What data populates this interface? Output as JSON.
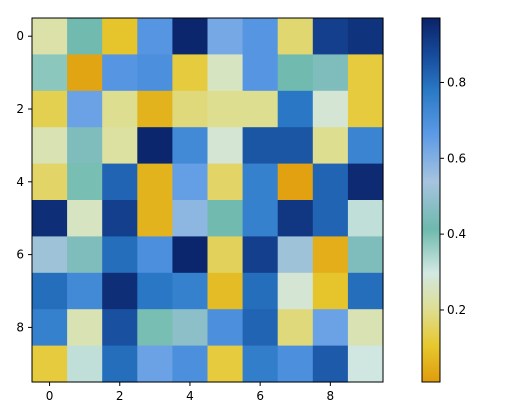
{
  "chart_data": {
    "type": "heatmap",
    "title": "",
    "xlabel": "",
    "ylabel": "",
    "rows": 10,
    "cols": 10,
    "x_ticks": [
      "0",
      "2",
      "4",
      "6",
      "8"
    ],
    "y_ticks": [
      "0",
      "2",
      "4",
      "6",
      "8"
    ],
    "values": [
      [
        0.23,
        0.42,
        0.1,
        0.68,
        0.96,
        0.62,
        0.68,
        0.17,
        0.9,
        0.93
      ],
      [
        0.38,
        0.03,
        0.68,
        0.7,
        0.12,
        0.26,
        0.68,
        0.42,
        0.45,
        0.12
      ],
      [
        0.14,
        0.64,
        0.2,
        0.06,
        0.18,
        0.2,
        0.2,
        0.78,
        0.28,
        0.12
      ],
      [
        0.24,
        0.45,
        0.22,
        0.96,
        0.72,
        0.28,
        0.85,
        0.85,
        0.2,
        0.74
      ],
      [
        0.16,
        0.4,
        0.82,
        0.06,
        0.65,
        0.16,
        0.75,
        0.02,
        0.82,
        0.95
      ],
      [
        0.94,
        0.26,
        0.9,
        0.06,
        0.58,
        0.42,
        0.75,
        0.92,
        0.82,
        0.32
      ],
      [
        0.52,
        0.45,
        0.8,
        0.7,
        0.96,
        0.15,
        0.9,
        0.52,
        0.05,
        0.45
      ],
      [
        0.8,
        0.72,
        0.94,
        0.78,
        0.75,
        0.08,
        0.8,
        0.28,
        0.1,
        0.8
      ],
      [
        0.75,
        0.24,
        0.86,
        0.4,
        0.48,
        0.7,
        0.82,
        0.18,
        0.64,
        0.24
      ],
      [
        0.12,
        0.32,
        0.8,
        0.64,
        0.7,
        0.12,
        0.76,
        0.7,
        0.84,
        0.3
      ]
    ],
    "colorbar": {
      "min": 0.01,
      "max": 0.97,
      "ticks": [
        {
          "value": 0.2,
          "label": "0.2"
        },
        {
          "value": 0.4,
          "label": "0.4"
        },
        {
          "value": 0.6,
          "label": "0.6"
        },
        {
          "value": 0.8,
          "label": "0.8"
        }
      ]
    },
    "colormap": [
      {
        "pos": 0.0,
        "color": "#e09c0c"
      },
      {
        "pos": 0.1,
        "color": "#e6c82e"
      },
      {
        "pos": 0.2,
        "color": "#dede92"
      },
      {
        "pos": 0.3,
        "color": "#d2e8e2"
      },
      {
        "pos": 0.42,
        "color": "#6eb9ad"
      },
      {
        "pos": 0.55,
        "color": "#a6c4df"
      },
      {
        "pos": 0.68,
        "color": "#5c9ae6"
      },
      {
        "pos": 0.8,
        "color": "#2a79c6"
      },
      {
        "pos": 0.9,
        "color": "#164a9a"
      },
      {
        "pos": 1.0,
        "color": "#0b2268"
      }
    ]
  }
}
